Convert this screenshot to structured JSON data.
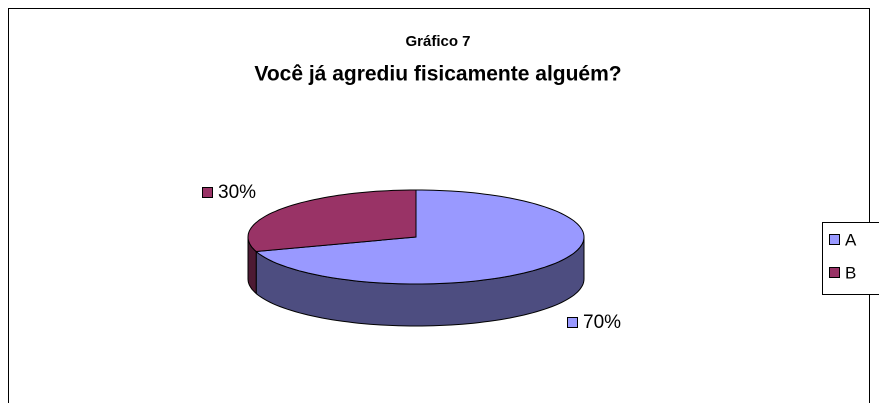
{
  "chart_data": {
    "type": "pie3d",
    "title": "Gráfico 7",
    "subtitle": "Você já agrediu fisicamente alguém?",
    "categories": [
      "A",
      "B"
    ],
    "values": [
      70,
      30
    ],
    "value_labels": [
      "70%",
      "30%"
    ],
    "colors": [
      "#9999ff",
      "#993366"
    ],
    "legend": "right"
  }
}
